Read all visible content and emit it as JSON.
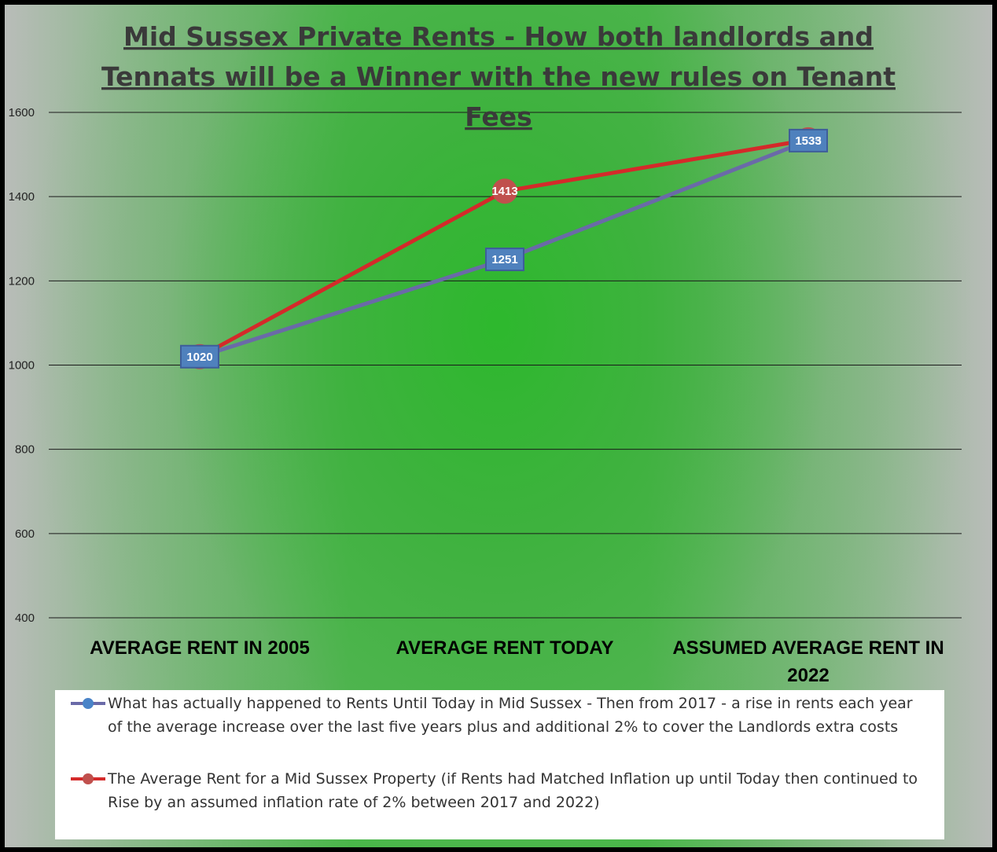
{
  "chart_data": {
    "type": "line",
    "title_lines": [
      "Mid Sussex Private Rents - How both landlords and",
      "Tennats will be a Winner with the new rules on Tenant",
      "Fees"
    ],
    "categories": [
      "AVERAGE RENT IN 2005",
      "AVERAGE RENT TODAY",
      "ASSUMED AVERAGE RENT IN 2022"
    ],
    "category_lines": [
      [
        "AVERAGE RENT IN 2005"
      ],
      [
        "AVERAGE RENT TODAY"
      ],
      [
        "ASSUMED AVERAGE RENT IN",
        "2022"
      ]
    ],
    "ylim": [
      400,
      1600
    ],
    "yticks": [
      400,
      600,
      800,
      1000,
      1200,
      1400,
      1600
    ],
    "grid": true,
    "legend_position": "bottom",
    "series": [
      {
        "name": "What has actually happened to Rents Until Today in Mid Sussex - Then from 2017 - a rise in rents each year of the average increase over the last five years plus and additional 2% to cover the Landlords extra costs",
        "values": [
          1020,
          1251,
          1533
        ],
        "color": "#6a6aa8",
        "marker_color": "#4a84c8",
        "label_bg": "#4f81bd"
      },
      {
        "name": "The Average Rent for a Mid Sussex Property (if Rents had Matched Inflation up until Today then continued to Rise by an assumed inflation rate of 2% between 2017 and 2022)",
        "values": [
          1020,
          1413,
          1535
        ],
        "color": "#d42a2a",
        "marker_color": "#c0504d",
        "label_bg": "#c0504d"
      }
    ]
  }
}
